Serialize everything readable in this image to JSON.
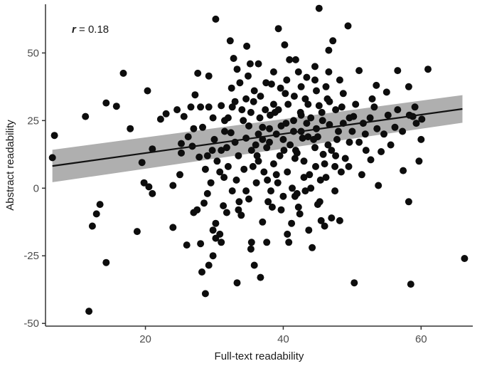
{
  "chart_data": {
    "type": "scatter",
    "title": "",
    "xlabel": "Full-text readability",
    "ylabel": "Abstract readability",
    "xlim": [
      5.5,
      67.5
    ],
    "ylim": [
      -51,
      68
    ],
    "x_ticks": [
      20,
      40,
      60
    ],
    "y_ticks": [
      -50,
      -25,
      0,
      25,
      50
    ],
    "grid": false,
    "legend": "none",
    "annotation": {
      "symbol": "r",
      "text": " = 0.18"
    },
    "fit_line": {
      "x": [
        6.5,
        66
      ],
      "y": [
        8.2,
        29.3
      ],
      "ci_lower": [
        2.2,
        24.2
      ],
      "ci_upper": [
        14.2,
        34.4
      ]
    },
    "colors": {
      "points": "#0d0d0d",
      "fit_line": "#111111",
      "ci_band": "#a6a6a6",
      "axis": "#333333"
    },
    "points": [
      [
        11.8,
        -45.5
      ],
      [
        6.8,
        19.5
      ],
      [
        6.5,
        11.3
      ],
      [
        11.3,
        26.5
      ],
      [
        12.3,
        -14
      ],
      [
        12.9,
        -9.5
      ],
      [
        13.4,
        -6
      ],
      [
        14.3,
        -27.5
      ],
      [
        14.3,
        31.5
      ],
      [
        15.8,
        30.3
      ],
      [
        16.8,
        42.5
      ],
      [
        17.8,
        22
      ],
      [
        18.8,
        -16
      ],
      [
        19.5,
        9.5
      ],
      [
        19.8,
        2
      ],
      [
        20.3,
        36
      ],
      [
        21,
        14.5
      ],
      [
        21,
        -2
      ],
      [
        20.5,
        0.5
      ],
      [
        22.2,
        25.5
      ],
      [
        23,
        27.5
      ],
      [
        24,
        -14.5
      ],
      [
        24.6,
        29
      ],
      [
        25.2,
        16.5
      ],
      [
        25.2,
        13
      ],
      [
        25.6,
        26.5
      ],
      [
        26,
        -21
      ],
      [
        25,
        5
      ],
      [
        24,
        1
      ],
      [
        26.2,
        19
      ],
      [
        27,
        -9
      ],
      [
        26.8,
        15.5
      ],
      [
        27.2,
        34.5
      ],
      [
        27.6,
        42.5
      ],
      [
        27.5,
        -8
      ],
      [
        28.2,
        -31
      ],
      [
        28,
        -20.5
      ],
      [
        28.5,
        -5.5
      ],
      [
        29.2,
        30
      ],
      [
        29.2,
        41.5
      ],
      [
        29,
        -2
      ],
      [
        29.7,
        14
      ],
      [
        28.3,
        22.5
      ],
      [
        28.7,
        -39
      ],
      [
        29.2,
        -28.5
      ],
      [
        29.8,
        -15.5
      ],
      [
        30.2,
        -18.5
      ],
      [
        30.8,
        -17
      ],
      [
        31,
        -20
      ],
      [
        31.3,
        -6.5
      ],
      [
        31.5,
        25
      ],
      [
        31.5,
        21
      ],
      [
        31.8,
        15
      ],
      [
        32,
        8
      ],
      [
        32.3,
        54.5
      ],
      [
        32.8,
        48
      ],
      [
        32.6,
        30
      ],
      [
        33,
        17
      ],
      [
        33.3,
        -35
      ],
      [
        33.3,
        44
      ],
      [
        33.6,
        -5
      ],
      [
        33.9,
        -10
      ],
      [
        34.2,
        25
      ],
      [
        34.6,
        -1
      ],
      [
        34.6,
        33
      ],
      [
        34.9,
        41.5
      ],
      [
        35.2,
        46
      ],
      [
        35.4,
        14
      ],
      [
        35.4,
        -20
      ],
      [
        35.8,
        36
      ],
      [
        35.8,
        -28.5
      ],
      [
        36.1,
        2
      ],
      [
        36.4,
        10
      ],
      [
        36.7,
        -33
      ],
      [
        37,
        22.5
      ],
      [
        37,
        -12.5
      ],
      [
        37.4,
        29
      ],
      [
        37.8,
        -5
      ],
      [
        38,
        17
      ],
      [
        38.3,
        38.5
      ],
      [
        38.4,
        -7
      ],
      [
        38.8,
        28
      ],
      [
        39,
        5
      ],
      [
        39.3,
        59
      ],
      [
        39.5,
        12
      ],
      [
        40,
        -3
      ],
      [
        40,
        18
      ],
      [
        40.3,
        35
      ],
      [
        40.6,
        -17
      ],
      [
        40.9,
        47.5
      ],
      [
        41.3,
        0
      ],
      [
        41.5,
        25
      ],
      [
        41.8,
        14
      ],
      [
        42.2,
        43
      ],
      [
        42.4,
        -9.5
      ],
      [
        42.8,
        18.5
      ],
      [
        43.2,
        33
      ],
      [
        43.7,
        -15.5
      ],
      [
        43.8,
        5
      ],
      [
        44.2,
        -22
      ],
      [
        44.6,
        45
      ],
      [
        44.8,
        22
      ],
      [
        45.2,
        30.5
      ],
      [
        45.3,
        -5
      ],
      [
        45.5,
        -12
      ],
      [
        45.2,
        66.5
      ],
      [
        45.8,
        12.5
      ],
      [
        46.2,
        37.5
      ],
      [
        46.6,
        51
      ],
      [
        46.7,
        23.5
      ],
      [
        47.2,
        54.5
      ],
      [
        47.5,
        8
      ],
      [
        47.8,
        18
      ],
      [
        48.2,
        -12
      ],
      [
        48.5,
        30
      ],
      [
        48.2,
        40
      ],
      [
        49.4,
        60
      ],
      [
        49.6,
        17
      ],
      [
        50.2,
        26.5
      ],
      [
        50.3,
        -35
      ],
      [
        51,
        43.5
      ],
      [
        51.4,
        5
      ],
      [
        51.9,
        20
      ],
      [
        52.7,
        10.5
      ],
      [
        53.2,
        30
      ],
      [
        53.5,
        38
      ],
      [
        53.8,
        1
      ],
      [
        54.2,
        13.5
      ],
      [
        55,
        35.5
      ],
      [
        55.6,
        16
      ],
      [
        56.2,
        22.5
      ],
      [
        56.6,
        43.5
      ],
      [
        57.4,
        6.5
      ],
      [
        58.2,
        37.5
      ],
      [
        58.3,
        27
      ],
      [
        58.8,
        26.5
      ],
      [
        58.5,
        -35.5
      ],
      [
        58.2,
        -5
      ],
      [
        59.1,
        30
      ],
      [
        59.7,
        10
      ],
      [
        60,
        18
      ],
      [
        61,
        44
      ],
      [
        66.3,
        -26
      ],
      [
        60.1,
        25.5
      ],
      [
        30.2,
        62.5
      ],
      [
        32.5,
        37
      ],
      [
        35.3,
        28
      ],
      [
        36.4,
        20
      ],
      [
        37.6,
        15
      ],
      [
        38.6,
        9
      ],
      [
        39.7,
        23
      ],
      [
        40.7,
        31
      ],
      [
        41.7,
        11
      ],
      [
        42.6,
        27
      ],
      [
        43.6,
        19
      ],
      [
        44.6,
        15
      ],
      [
        45.7,
        25
      ],
      [
        46.7,
        32
      ],
      [
        33.5,
        12
      ],
      [
        32.4,
        20.5
      ],
      [
        34.6,
        18.5
      ],
      [
        36.6,
        26
      ],
      [
        38.6,
        31
      ],
      [
        40.6,
        6
      ],
      [
        42.6,
        21
      ],
      [
        44.7,
        8
      ],
      [
        46.5,
        16
      ],
      [
        48.7,
        24
      ],
      [
        31,
        30.5
      ],
      [
        29.8,
        26
      ],
      [
        35.6,
        8
      ],
      [
        37.7,
        3
      ],
      [
        39.7,
        -8
      ],
      [
        41.7,
        -3
      ],
      [
        43.2,
        -1
      ],
      [
        45.4,
        3
      ],
      [
        47.5,
        -1
      ],
      [
        49.5,
        8
      ],
      [
        33.5,
        -8
      ],
      [
        32.6,
        -1
      ],
      [
        31.4,
        4
      ],
      [
        30.4,
        10
      ],
      [
        28.7,
        7
      ],
      [
        27.8,
        11.5
      ],
      [
        27,
        22
      ],
      [
        26.6,
        30
      ],
      [
        35,
        -4
      ],
      [
        36.7,
        34
      ],
      [
        38.6,
        43
      ],
      [
        40.5,
        40
      ],
      [
        42.6,
        37.5
      ],
      [
        44.6,
        40
      ],
      [
        46.6,
        43
      ],
      [
        48.7,
        35
      ],
      [
        50.5,
        31
      ],
      [
        52.6,
        26
      ],
      [
        54.6,
        20
      ],
      [
        56.6,
        29
      ],
      [
        34.7,
        52.5
      ],
      [
        36.4,
        46
      ],
      [
        38.1,
        27
      ],
      [
        39.3,
        29
      ],
      [
        40.4,
        24
      ],
      [
        41.5,
        21
      ],
      [
        42.5,
        28
      ],
      [
        43.4,
        24
      ],
      [
        44.4,
        18
      ],
      [
        37,
        18
      ],
      [
        38,
        22
      ],
      [
        39,
        20
      ],
      [
        40.1,
        14
      ],
      [
        41,
        16
      ],
      [
        42,
        13
      ],
      [
        43,
        10
      ],
      [
        44,
        26
      ],
      [
        45,
        19
      ],
      [
        46,
        9
      ],
      [
        47,
        14
      ],
      [
        48,
        21
      ],
      [
        36,
        16
      ],
      [
        35,
        23
      ],
      [
        34,
        29
      ],
      [
        33,
        32
      ],
      [
        32,
        26
      ],
      [
        31,
        14
      ],
      [
        30,
        18
      ],
      [
        29,
        12
      ],
      [
        28,
        30
      ],
      [
        33.7,
        39
      ],
      [
        35.7,
        32
      ],
      [
        37.5,
        39
      ],
      [
        39.6,
        37
      ],
      [
        41.6,
        34
      ],
      [
        43.6,
        31
      ],
      [
        45.6,
        28
      ],
      [
        47.6,
        29
      ],
      [
        49.6,
        26
      ],
      [
        51.6,
        24
      ],
      [
        53.6,
        22
      ],
      [
        40.2,
        53
      ],
      [
        41.8,
        47.5
      ],
      [
        43.4,
        41
      ],
      [
        44.8,
        36
      ],
      [
        46.4,
        33
      ],
      [
        37.2,
        6
      ],
      [
        38.2,
        -1
      ],
      [
        39.2,
        2
      ],
      [
        41.2,
        -13
      ],
      [
        42.2,
        -7
      ],
      [
        36.2,
        12
      ],
      [
        34.3,
        7
      ],
      [
        33.2,
        3
      ],
      [
        30.8,
        6
      ],
      [
        29.5,
        2
      ],
      [
        31.8,
        -9
      ],
      [
        30.2,
        -13
      ],
      [
        29.8,
        -25
      ],
      [
        37.6,
        -20
      ],
      [
        35.3,
        -22.5
      ],
      [
        40.8,
        -20
      ],
      [
        42,
        -2
      ],
      [
        43,
        4
      ],
      [
        47.6,
        12
      ],
      [
        49,
        11
      ],
      [
        50,
        21
      ],
      [
        51,
        17
      ],
      [
        52,
        14
      ],
      [
        48.4,
        6
      ],
      [
        46.2,
        4
      ],
      [
        45,
        -6
      ],
      [
        44,
        0
      ],
      [
        47,
        -11
      ],
      [
        46,
        -14
      ],
      [
        52.9,
        33
      ],
      [
        55.2,
        27
      ],
      [
        57.3,
        21
      ],
      [
        59.3,
        24
      ]
    ]
  }
}
